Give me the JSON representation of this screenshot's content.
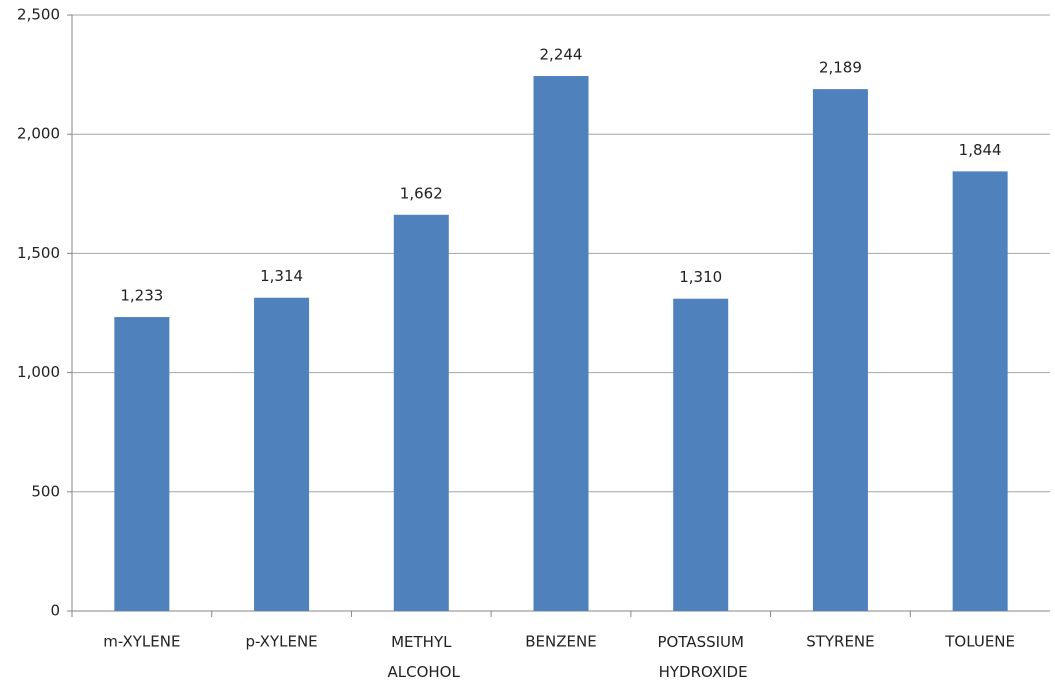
{
  "chart_data": {
    "type": "bar",
    "categories": [
      "m-XYLENE",
      "p-XYLENE",
      "METHYL ALCOHOL",
      "BENZENE",
      "POTASSIUM HYDROXIDE",
      "STYRENE",
      "TOLUENE"
    ],
    "values": [
      1233,
      1314,
      1662,
      2244,
      1310,
      2189,
      1844
    ],
    "value_labels": [
      "1,233",
      "1,314",
      "1,662",
      "2,244",
      "1,310",
      "2,189",
      "1,844"
    ],
    "color": "#4f81bd",
    "ylim": [
      0,
      2500
    ],
    "yticks": [
      0,
      500,
      {
        "value": 1000,
        "label": "1,000"
      },
      {
        "value": 1500,
        "label": "1,500"
      },
      {
        "value": 2000,
        "label": "2,000"
      },
      {
        "value": 2500,
        "label": "2,500"
      }
    ],
    "grid": true
  }
}
